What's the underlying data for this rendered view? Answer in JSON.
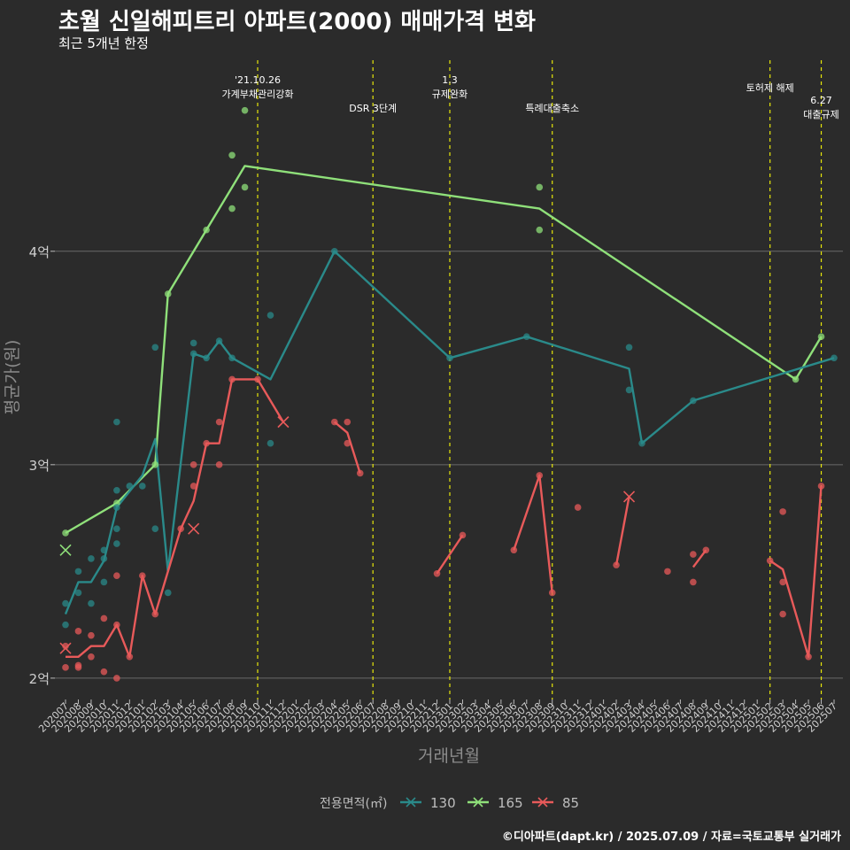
{
  "header": {
    "title": "초월 신일해피트리 아파트(2000) 매매가격 변화",
    "subtitle": "최근 5개년 한정",
    "caption": "©디아파트(dapt.kr) / 2025.07.09 / 자료=국토교통부 실거래가"
  },
  "chart_data": {
    "type": "line",
    "title": "초월 신일해피트리 아파트(2000) 매매가격 변화",
    "subtitle": "최근 5개년 한정",
    "xlabel": "거래년월",
    "ylabel": "평균가(원)",
    "ylim": [
      1.9,
      4.92
    ],
    "yticks": [
      {
        "value": 2,
        "label": "2억"
      },
      {
        "value": 3,
        "label": "3억"
      },
      {
        "value": 4,
        "label": "4억"
      }
    ],
    "grid": "horizontal major lines",
    "legend": {
      "title": "전용면적(㎡)",
      "position": "bottom"
    },
    "categories": [
      "202007",
      "202008",
      "202009",
      "202010",
      "202011",
      "202012",
      "202101",
      "202102",
      "202103",
      "202104",
      "202105",
      "202106",
      "202107",
      "202108",
      "202109",
      "202110",
      "202111",
      "202112",
      "202201",
      "202202",
      "202203",
      "202204",
      "202205",
      "202206",
      "202207",
      "202208",
      "202209",
      "202210",
      "202211",
      "202212",
      "202301",
      "202302",
      "202303",
      "202304",
      "202305",
      "202306",
      "202307",
      "202308",
      "202309",
      "202310",
      "202311",
      "202312",
      "202401",
      "202402",
      "202403",
      "202404",
      "202405",
      "202406",
      "202407",
      "202408",
      "202409",
      "202410",
      "202411",
      "202412",
      "202501",
      "202502",
      "202503",
      "202504",
      "202505",
      "202506",
      "202507"
    ],
    "events": [
      {
        "x": "202110",
        "label": "'21.10.26\n가계부채관리강화",
        "row": "top"
      },
      {
        "x": "202207",
        "label": "DSR 3단계",
        "row": "low"
      },
      {
        "x": "202301",
        "label": "1.3\n규제완화",
        "row": "top"
      },
      {
        "x": "202309",
        "label": "특례대출축소",
        "row": "low"
      },
      {
        "x": "202502",
        "label": "토허제 해제",
        "row": "mid"
      },
      {
        "x": "202506",
        "label": "6.27\n대출규제",
        "row": "right"
      }
    ],
    "series": [
      {
        "name": "130",
        "color": "#2a8a8a",
        "line": [
          [
            "202007",
            2.3
          ],
          [
            "202008",
            2.45
          ],
          [
            "202009",
            2.45
          ],
          [
            "202010",
            2.55
          ],
          [
            "202011",
            2.8
          ],
          [
            "202101",
            2.95
          ],
          [
            "202102",
            3.12
          ],
          [
            "202103",
            2.5
          ],
          [
            "202105",
            3.52
          ],
          [
            "202106",
            3.5
          ],
          [
            "202107",
            3.58
          ],
          [
            "202108",
            3.5
          ],
          [
            "202111",
            3.4
          ],
          [
            "202204",
            4.0
          ],
          [
            "202301",
            3.5
          ],
          [
            "202307",
            3.6
          ],
          [
            "202403",
            3.45
          ],
          [
            "202404",
            3.1
          ],
          [
            "202408",
            3.3
          ],
          [
            "202507",
            3.5
          ]
        ],
        "points": [
          [
            "202007",
            2.35
          ],
          [
            "202007",
            2.25
          ],
          [
            "202008",
            2.5
          ],
          [
            "202008",
            2.4
          ],
          [
            "202009",
            2.56
          ],
          [
            "202009",
            2.35
          ],
          [
            "202010",
            2.6
          ],
          [
            "202010",
            2.56
          ],
          [
            "202010",
            2.45
          ],
          [
            "202011",
            3.2
          ],
          [
            "202011",
            2.88
          ],
          [
            "202011",
            2.8
          ],
          [
            "202011",
            2.7
          ],
          [
            "202011",
            2.63
          ],
          [
            "202012",
            2.9
          ],
          [
            "202101",
            2.9
          ],
          [
            "202102",
            3.55
          ],
          [
            "202102",
            2.7
          ],
          [
            "202103",
            2.4
          ],
          [
            "202105",
            3.57
          ],
          [
            "202105",
            3.52
          ],
          [
            "202106",
            3.5
          ],
          [
            "202107",
            3.58
          ],
          [
            "202108",
            3.5
          ],
          [
            "202111",
            3.7
          ],
          [
            "202111",
            3.1
          ],
          [
            "202204",
            4.0
          ],
          [
            "202301",
            3.5
          ],
          [
            "202307",
            3.6
          ],
          [
            "202403",
            3.55
          ],
          [
            "202403",
            3.35
          ],
          [
            "202404",
            3.1
          ],
          [
            "202408",
            3.3
          ],
          [
            "202507",
            3.5
          ]
        ],
        "cross": []
      },
      {
        "name": "165",
        "color": "#8fe07a",
        "line": [
          [
            "202007",
            2.68
          ],
          [
            "202011",
            2.82
          ],
          [
            "202102",
            3.0
          ],
          [
            "202103",
            3.8
          ],
          [
            "202106",
            4.1
          ],
          [
            "202108",
            4.3
          ],
          [
            "202109",
            4.4
          ],
          [
            "202308",
            4.2
          ],
          [
            "202504",
            3.4
          ],
          [
            "202506",
            3.6
          ]
        ],
        "points": [
          [
            "202007",
            2.68
          ],
          [
            "202011",
            2.82
          ],
          [
            "202102",
            3.0
          ],
          [
            "202103",
            3.8
          ],
          [
            "202106",
            4.1
          ],
          [
            "202108",
            4.45
          ],
          [
            "202108",
            4.2
          ],
          [
            "202109",
            4.66
          ],
          [
            "202109",
            4.3
          ],
          [
            "202308",
            4.3
          ],
          [
            "202308",
            4.1
          ],
          [
            "202504",
            3.4
          ],
          [
            "202506",
            3.6
          ]
        ],
        "cross": [
          [
            "202007",
            2.6
          ]
        ]
      },
      {
        "name": "85",
        "color": "#e85a5a",
        "segments": [
          [
            [
              "202007",
              2.1
            ],
            [
              "202008",
              2.1
            ],
            [
              "202009",
              2.15
            ],
            [
              "202010",
              2.15
            ],
            [
              "202011",
              2.25
            ],
            [
              "202012",
              2.1
            ],
            [
              "202101",
              2.48
            ],
            [
              "202102",
              2.3
            ],
            [
              "202103",
              2.5
            ],
            [
              "202104",
              2.7
            ],
            [
              "202105",
              2.83
            ],
            [
              "202106",
              3.1
            ],
            [
              "202107",
              3.1
            ],
            [
              "202108",
              3.4
            ],
            [
              "202110",
              3.4
            ],
            [
              "202112",
              3.2
            ]
          ],
          [
            [
              "202204",
              3.2
            ],
            [
              "202205",
              3.15
            ],
            [
              "202206",
              2.96
            ]
          ],
          [
            [
              "202212",
              2.49
            ],
            [
              "202302",
              2.67
            ]
          ],
          [
            [
              "202306",
              2.6
            ],
            [
              "202308",
              2.95
            ],
            [
              "202309",
              2.4
            ]
          ],
          [
            [
              "202402",
              2.53
            ],
            [
              "202403",
              2.85
            ]
          ],
          [
            [
              "202408",
              2.52
            ],
            [
              "202409",
              2.6
            ]
          ],
          [
            [
              "202502",
              2.55
            ],
            [
              "202503",
              2.51
            ],
            [
              "202505",
              2.1
            ],
            [
              "202506",
              2.9
            ]
          ]
        ],
        "points": [
          [
            "202007",
            2.15
          ],
          [
            "202007",
            2.05
          ],
          [
            "202008",
            2.22
          ],
          [
            "202008",
            2.06
          ],
          [
            "202008",
            2.05
          ],
          [
            "202009",
            2.2
          ],
          [
            "202009",
            2.1
          ],
          [
            "202010",
            2.28
          ],
          [
            "202010",
            2.03
          ],
          [
            "202011",
            2.48
          ],
          [
            "202011",
            2.25
          ],
          [
            "202011",
            2.0
          ],
          [
            "202012",
            2.1
          ],
          [
            "202101",
            2.48
          ],
          [
            "202102",
            2.3
          ],
          [
            "202104",
            2.7
          ],
          [
            "202105",
            3.0
          ],
          [
            "202105",
            2.9
          ],
          [
            "202106",
            3.1
          ],
          [
            "202107",
            3.2
          ],
          [
            "202107",
            3.0
          ],
          [
            "202108",
            3.4
          ],
          [
            "202110",
            3.4
          ],
          [
            "202204",
            3.2
          ],
          [
            "202205",
            3.2
          ],
          [
            "202205",
            3.1
          ],
          [
            "202206",
            2.96
          ],
          [
            "202212",
            2.49
          ],
          [
            "202302",
            2.67
          ],
          [
            "202306",
            2.6
          ],
          [
            "202308",
            2.95
          ],
          [
            "202309",
            2.4
          ],
          [
            "202311",
            2.8
          ],
          [
            "202402",
            2.53
          ],
          [
            "202406",
            2.5
          ],
          [
            "202408",
            2.58
          ],
          [
            "202408",
            2.45
          ],
          [
            "202409",
            2.6
          ],
          [
            "202502",
            2.55
          ],
          [
            "202503",
            2.78
          ],
          [
            "202503",
            2.45
          ],
          [
            "202503",
            2.3
          ],
          [
            "202505",
            2.1
          ],
          [
            "202506",
            2.9
          ]
        ],
        "cross": [
          [
            "202007",
            2.14
          ],
          [
            "202105",
            2.7
          ],
          [
            "202112",
            3.2
          ],
          [
            "202403",
            2.85
          ]
        ]
      }
    ]
  }
}
